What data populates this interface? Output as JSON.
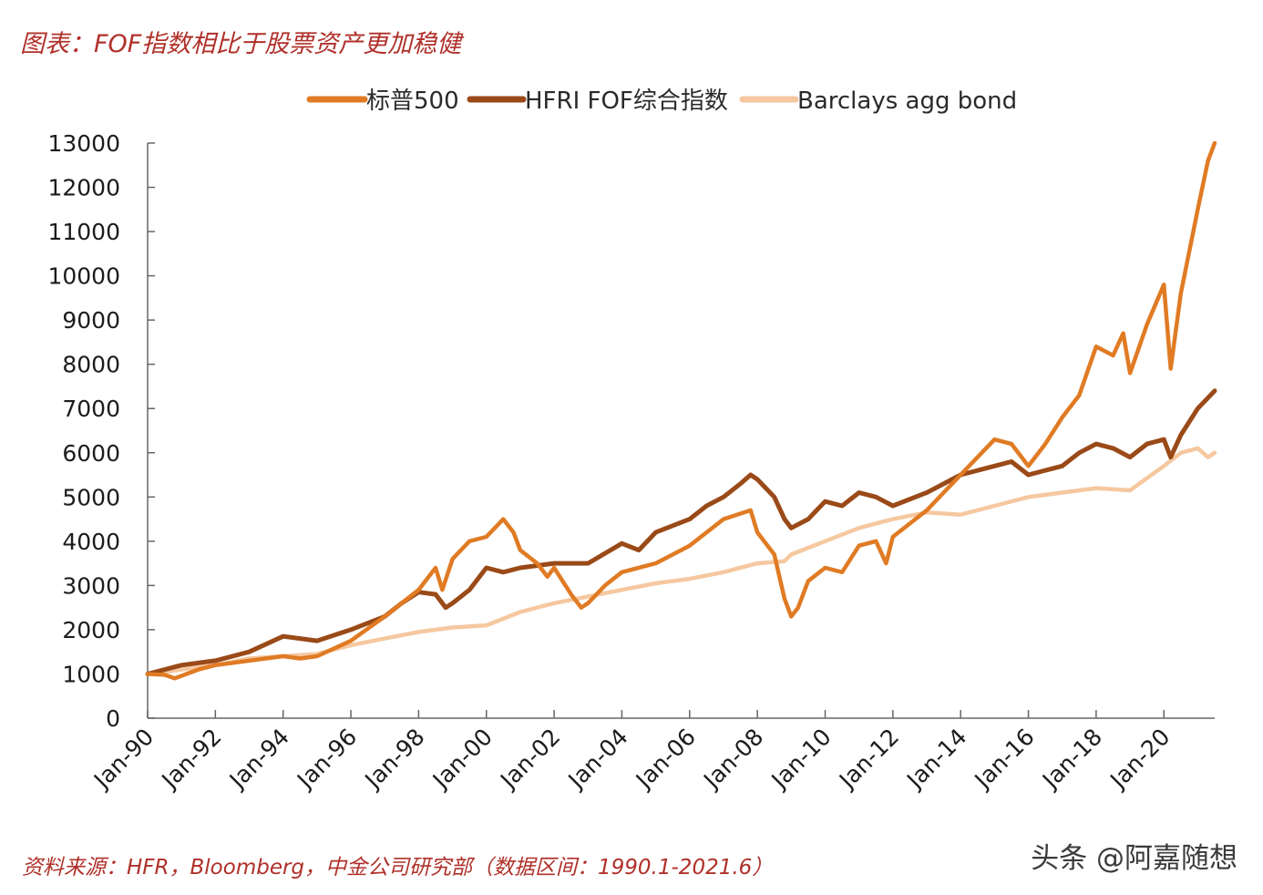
{
  "header": {
    "title": "图表：FOF指数相比于股票资产更加稳健"
  },
  "footer": {
    "source": "资料来源：HFR，Bloomberg，中金公司研究部（数据区间：1990.1-2021.6）",
    "watermark": "头条 @阿嘉随想"
  },
  "chart_data": {
    "type": "line",
    "title": "图表：FOF指数相比于股票资产更加稳健",
    "xlabel": "",
    "ylabel": "",
    "ylim": [
      0,
      13000
    ],
    "xlim": [
      1990.0,
      2021.5
    ],
    "yticks": [
      0,
      1000,
      2000,
      3000,
      4000,
      5000,
      6000,
      7000,
      8000,
      9000,
      10000,
      11000,
      12000,
      13000
    ],
    "xtick_labels": [
      "Jan-90",
      "Jan-92",
      "Jan-94",
      "Jan-96",
      "Jan-98",
      "Jan-00",
      "Jan-02",
      "Jan-04",
      "Jan-06",
      "Jan-08",
      "Jan-10",
      "Jan-12",
      "Jan-14",
      "Jan-16",
      "Jan-18",
      "Jan-20"
    ],
    "xtick_years": [
      1990,
      1992,
      1994,
      1996,
      1998,
      2000,
      2002,
      2004,
      2006,
      2008,
      2010,
      2012,
      2014,
      2016,
      2018,
      2020
    ],
    "legend_position": "top",
    "series": [
      {
        "name": "标普500",
        "color": "#e07b24",
        "x": [
          1990.0,
          1990.5,
          1990.8,
          1991.5,
          1992.0,
          1993.0,
          1994.0,
          1994.5,
          1995.0,
          1996.0,
          1997.0,
          1997.5,
          1998.0,
          1998.5,
          1998.7,
          1999.0,
          1999.5,
          2000.0,
          2000.5,
          2000.8,
          2001.0,
          2001.5,
          2001.8,
          2002.0,
          2002.5,
          2002.8,
          2003.0,
          2003.5,
          2004.0,
          2005.0,
          2006.0,
          2007.0,
          2007.8,
          2008.0,
          2008.5,
          2008.8,
          2009.0,
          2009.2,
          2009.5,
          2010.0,
          2010.5,
          2011.0,
          2011.5,
          2011.8,
          2012.0,
          2013.0,
          2014.0,
          2014.5,
          2015.0,
          2015.5,
          2016.0,
          2016.5,
          2017.0,
          2017.5,
          2018.0,
          2018.5,
          2018.8,
          2019.0,
          2019.5,
          2020.0,
          2020.2,
          2020.5,
          2021.0,
          2021.3,
          2021.5
        ],
        "values": [
          1000,
          980,
          900,
          1100,
          1200,
          1300,
          1400,
          1350,
          1400,
          1750,
          2300,
          2600,
          2900,
          3400,
          2900,
          3600,
          4000,
          4100,
          4500,
          4200,
          3800,
          3500,
          3200,
          3400,
          2800,
          2500,
          2600,
          3000,
          3300,
          3500,
          3900,
          4500,
          4700,
          4200,
          3700,
          2700,
          2300,
          2500,
          3100,
          3400,
          3300,
          3900,
          4000,
          3500,
          4100,
          4700,
          5500,
          5900,
          6300,
          6200,
          5700,
          6200,
          6800,
          7300,
          8400,
          8200,
          8700,
          7800,
          8900,
          9800,
          7900,
          9600,
          11500,
          12600,
          13000
        ]
      },
      {
        "name": "HFRI FOF综合指数",
        "color": "#9a4a18",
        "x": [
          1990.0,
          1991.0,
          1992.0,
          1993.0,
          1994.0,
          1994.5,
          1995.0,
          1996.0,
          1997.0,
          1997.5,
          1998.0,
          1998.5,
          1998.8,
          1999.0,
          1999.5,
          2000.0,
          2000.5,
          2001.0,
          2002.0,
          2003.0,
          2004.0,
          2004.5,
          2005.0,
          2006.0,
          2006.5,
          2007.0,
          2007.5,
          2007.8,
          2008.0,
          2008.5,
          2008.8,
          2009.0,
          2009.5,
          2010.0,
          2010.5,
          2011.0,
          2011.5,
          2012.0,
          2013.0,
          2014.0,
          2015.0,
          2015.5,
          2016.0,
          2017.0,
          2017.5,
          2018.0,
          2018.5,
          2019.0,
          2019.5,
          2020.0,
          2020.2,
          2020.5,
          2021.0,
          2021.5
        ],
        "values": [
          1000,
          1200,
          1300,
          1500,
          1850,
          1800,
          1750,
          2000,
          2300,
          2600,
          2850,
          2800,
          2500,
          2600,
          2900,
          3400,
          3300,
          3400,
          3500,
          3500,
          3950,
          3800,
          4200,
          4500,
          4800,
          5000,
          5300,
          5500,
          5400,
          5000,
          4500,
          4300,
          4500,
          4900,
          4800,
          5100,
          5000,
          4800,
          5100,
          5500,
          5700,
          5800,
          5500,
          5700,
          6000,
          6200,
          6100,
          5900,
          6200,
          6300,
          5900,
          6400,
          7000,
          7400
        ]
      },
      {
        "name": "Barclays agg bond",
        "color": "#f5c8a0",
        "x": [
          1990.0,
          1991.0,
          1992.0,
          1993.0,
          1994.0,
          1995.0,
          1996.0,
          1997.0,
          1998.0,
          1999.0,
          2000.0,
          2001.0,
          2002.0,
          2003.0,
          2004.0,
          2005.0,
          2006.0,
          2007.0,
          2008.0,
          2008.8,
          2009.0,
          2010.0,
          2011.0,
          2012.0,
          2013.0,
          2014.0,
          2015.0,
          2016.0,
          2017.0,
          2018.0,
          2019.0,
          2020.0,
          2020.5,
          2021.0,
          2021.3,
          2021.5
        ],
        "values": [
          1000,
          1100,
          1200,
          1350,
          1400,
          1450,
          1650,
          1800,
          1950,
          2050,
          2100,
          2400,
          2600,
          2750,
          2900,
          3050,
          3150,
          3300,
          3500,
          3550,
          3700,
          4000,
          4300,
          4500,
          4650,
          4600,
          4800,
          5000,
          5100,
          5200,
          5150,
          5700,
          6000,
          6100,
          5900,
          6000
        ]
      }
    ]
  }
}
